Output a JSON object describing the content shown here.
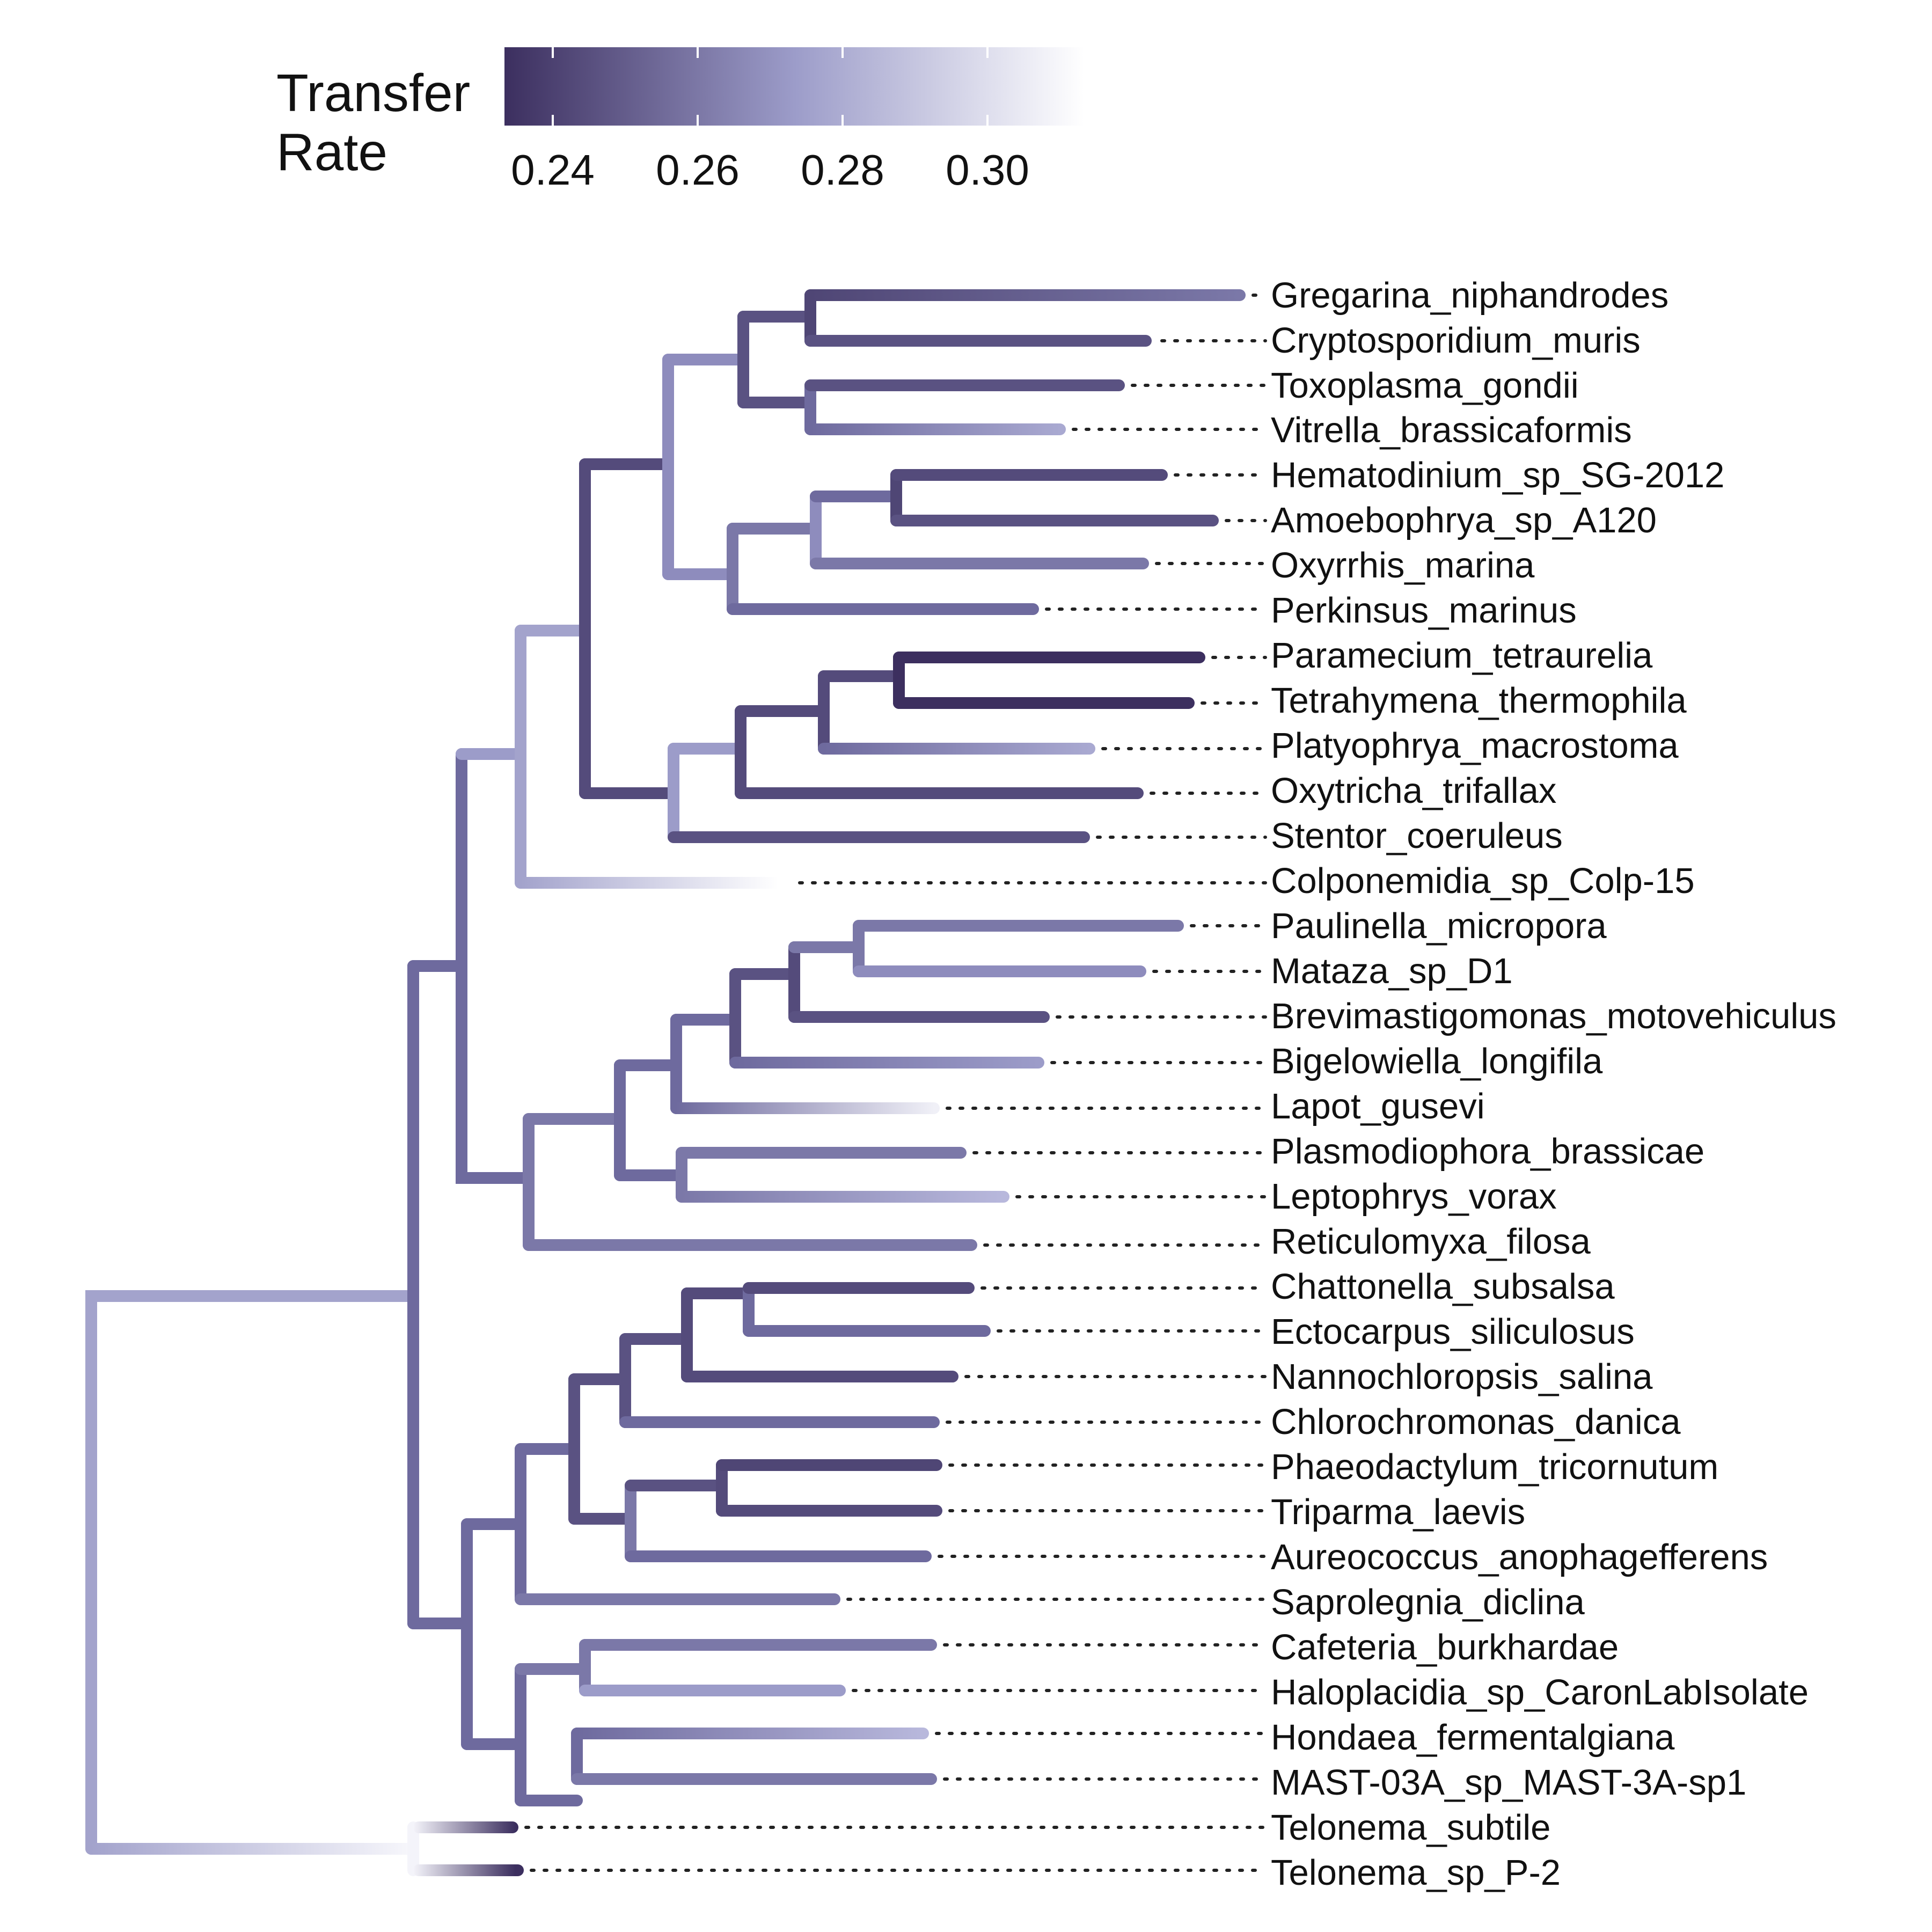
{
  "legend": {
    "title_line1": "Transfer",
    "title_line2": "Rate",
    "ticks": [
      "0.24",
      "0.26",
      "0.28",
      "0.30"
    ],
    "color_low": "#3c2f5f",
    "color_mid": "#9c9cc9",
    "color_high": "#ffffff"
  },
  "tips": [
    "Gregarina_niphandrodes",
    "Cryptosporidium_muris",
    "Toxoplasma_gondii",
    "Vitrella_brassicaformis",
    "Hematodinium_sp_SG-2012",
    "Amoebophrya_sp_A120",
    "Oxyrrhis_marina",
    "Perkinsus_marinus",
    "Paramecium_tetraurelia",
    "Tetrahymena_thermophila",
    "Platyophrya_macrostoma",
    "Oxytricha_trifallax",
    "Stentor_coeruleus",
    "Colponemidia_sp_Colp-15",
    "Paulinella_micropora",
    "Mataza_sp_D1",
    "Brevimastigomonas_motovehiculus",
    "Bigelowiella_longifila",
    "Lapot_gusevi",
    "Plasmodiophora_brassicae",
    "Leptophrys_vorax",
    "Reticulomyxa_filosa",
    "Chattonella_subsalsa",
    "Ectocarpus_siliculosus",
    "Nannochloropsis_salina",
    "Chlorochromonas_danica",
    "Phaeodactylum_tricornutum",
    "Triparma_laevis",
    "Aureococcus_anophagefferens",
    "Saprolegnia_diclina",
    "Cafeteria_burkhardae",
    "Haloplacidia_sp_CaronLabIsolate",
    "Hondaea_fermentalgiana",
    "MAST-03A_sp_MAST-3A-sp1",
    "Telonema_subtile",
    "Telonema_sp_P-2"
  ]
}
